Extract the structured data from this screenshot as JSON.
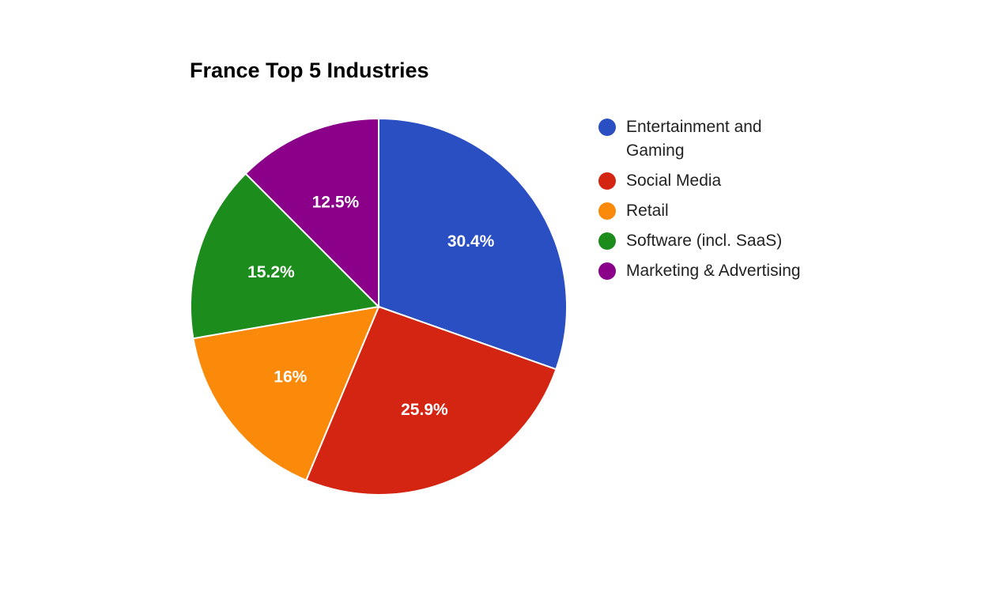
{
  "chart_data": {
    "type": "pie",
    "title": "France Top 5 Industries",
    "legend_position": "right",
    "slices": [
      {
        "name": "Entertainment and Gaming",
        "value": 30.4,
        "label": "30.4%",
        "color": "#2a4fc3"
      },
      {
        "name": "Social Media",
        "value": 25.9,
        "label": "25.9%",
        "color": "#d42412"
      },
      {
        "name": "Retail",
        "value": 16.0,
        "label": "16%",
        "color": "#fb8a0a"
      },
      {
        "name": "Software (incl. SaaS)",
        "value": 15.2,
        "label": "15.2%",
        "color": "#1c8c1c"
      },
      {
        "name": "Marketing & Advertising",
        "value": 12.5,
        "label": "12.5%",
        "color": "#8a0089"
      }
    ]
  }
}
